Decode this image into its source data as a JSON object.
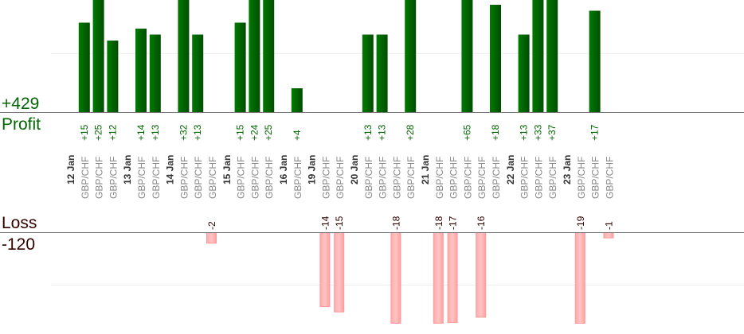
{
  "chart_data": {
    "type": "bar",
    "profit_label": "Profit",
    "loss_label": "Loss",
    "profit_total": "+429",
    "loss_total": "-120",
    "colors": {
      "profit": "#006600",
      "loss": "#ffaaaa",
      "loss_text": "#330000",
      "pair_text": "#888888"
    },
    "grid": true,
    "columns": [
      {
        "date": "12 Jan"
      },
      {
        "pair": "GBP/CHF",
        "value": 15
      },
      {
        "pair": "GBP/CHF",
        "value": 25
      },
      {
        "pair": "GBP/CHF",
        "value": 12
      },
      {
        "date": "13 Jan"
      },
      {
        "pair": "GBP/CHF",
        "value": 14
      },
      {
        "pair": "GBP/CHF",
        "value": 13
      },
      {
        "date": "14 Jan"
      },
      {
        "pair": "GBP/CHF",
        "value": 32
      },
      {
        "pair": "GBP/CHF",
        "value": 13
      },
      {
        "pair": "GBP/CHF",
        "value": -2
      },
      {
        "date": "15 Jan"
      },
      {
        "pair": "GBP/CHF",
        "value": 15
      },
      {
        "pair": "GBP/CHF",
        "value": 24
      },
      {
        "pair": "GBP/CHF",
        "value": 25
      },
      {
        "date": "16 Jan"
      },
      {
        "pair": "GBP/CHF",
        "value": 4
      },
      {
        "date": "19 Jan"
      },
      {
        "pair": "GBP/CHF",
        "value": -14
      },
      {
        "pair": "GBP/CHF",
        "value": -15
      },
      {
        "date": "20 Jan"
      },
      {
        "pair": "GBP/CHF",
        "value": 13
      },
      {
        "pair": "GBP/CHF",
        "value": 13
      },
      {
        "pair": "GBP/CHF",
        "value": -18
      },
      {
        "pair": "GBP/CHF",
        "value": 28
      },
      {
        "date": "21 Jan"
      },
      {
        "pair": "GBP/CHF",
        "value": -18
      },
      {
        "pair": "GBP/CHF",
        "value": -17
      },
      {
        "pair": "GBP/CHF",
        "value": 65
      },
      {
        "pair": "GBP/CHF",
        "value": -16
      },
      {
        "pair": "GBP/CHF",
        "value": 18
      },
      {
        "date": "22 Jan"
      },
      {
        "pair": "GBP/CHF",
        "value": 13
      },
      {
        "pair": "GBP/CHF",
        "value": 33
      },
      {
        "pair": "GBP/CHF",
        "value": 37
      },
      {
        "date": "23 Jan"
      },
      {
        "pair": "GBP/CHF",
        "value": -19
      },
      {
        "pair": "GBP/CHF",
        "value": 17
      },
      {
        "pair": "GBP/CHF",
        "value": -1
      }
    ]
  }
}
